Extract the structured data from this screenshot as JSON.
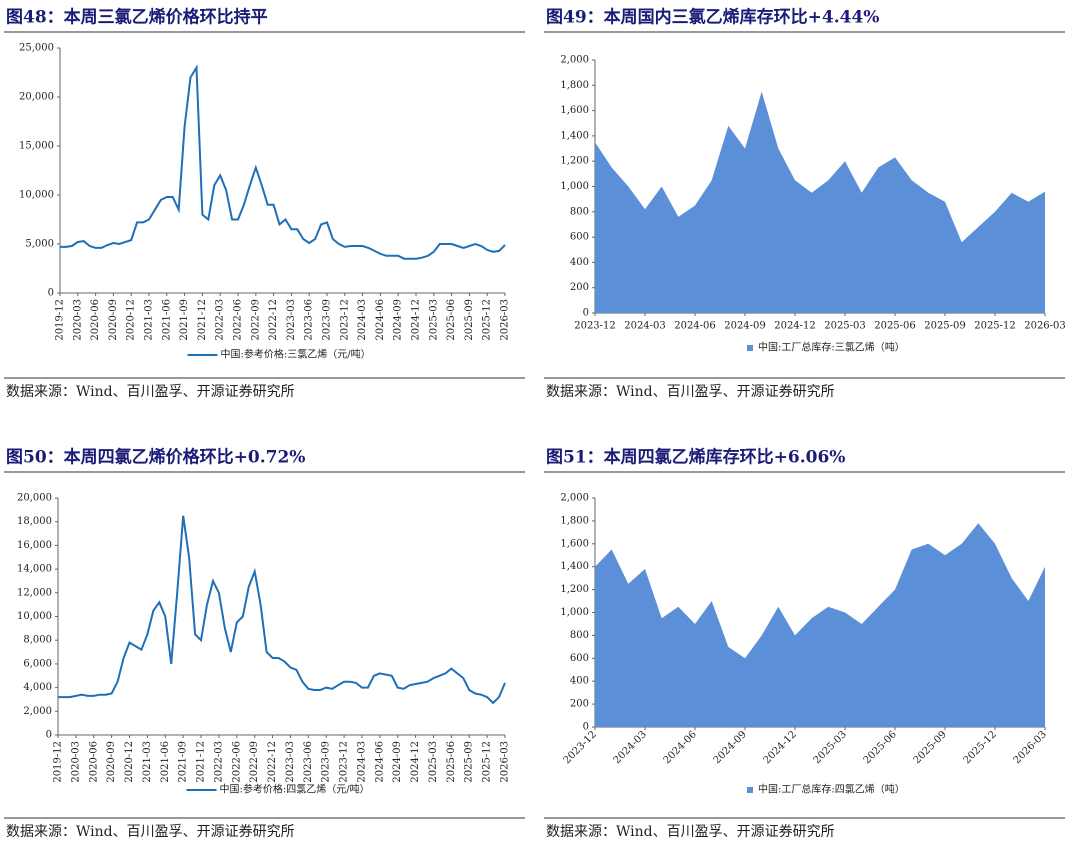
{
  "chart_data": [
    {
      "type": "line",
      "title": "图48：本周三氯乙烯价格环比持平",
      "source": "数据来源：Wind、百川盈孚、开源证券研究所",
      "categories": [
        "2019-12",
        null,
        null,
        "2020-03",
        null,
        null,
        "2020-06",
        null,
        null,
        "2020-09",
        null,
        null,
        "2020-12",
        null,
        null,
        "2021-03",
        null,
        null,
        "2021-06",
        null,
        null,
        "2021-09",
        null,
        null,
        "2021-12",
        null,
        null,
        "2022-03",
        null,
        null,
        "2022-06",
        null,
        null,
        "2022-09",
        null,
        null,
        "2022-12",
        null,
        null,
        "2023-03",
        null,
        null,
        "2023-06",
        null,
        null,
        "2023-09",
        null,
        null,
        "2023-12",
        null,
        null,
        "2024-03",
        null,
        null,
        "2024-06",
        null,
        null,
        "2024-09",
        null,
        null,
        "2024-12",
        null,
        null,
        "2025-03",
        null,
        null,
        "2025-06",
        null,
        null,
        "2025-09",
        null,
        null,
        "2025-12",
        null,
        null,
        "2026-03"
      ],
      "series": [
        {
          "name": "中国:参考价格:三氯乙烯（元/吨）",
          "color": "#1f6fb8",
          "values": [
            4700,
            4700,
            4800,
            5200,
            5300,
            4800,
            4600,
            4600,
            4900,
            5100,
            5000,
            5200,
            5400,
            7200,
            7200,
            7500,
            8500,
            9500,
            9800,
            9800,
            8500,
            17000,
            22000,
            23000,
            8000,
            7500,
            11000,
            12000,
            10500,
            7500,
            7500,
            9000,
            11000,
            12800,
            11000,
            9000,
            9000,
            7000,
            7500,
            6500,
            6500,
            5500,
            5100,
            5500,
            7000,
            7200,
            5500,
            5000,
            4700,
            4800,
            4800,
            4800,
            4600,
            4300,
            4000,
            3800,
            3800,
            3800,
            3500,
            3500,
            3500,
            3600,
            3800,
            4200,
            5000,
            5000,
            5000,
            4800,
            4600,
            4800,
            5000,
            4800,
            4400,
            4200,
            4300,
            4900
          ]
        }
      ],
      "ylim": [
        0,
        25000
      ],
      "yticks": [
        0,
        {
          "value": 5000,
          "label": "5,000"
        },
        {
          "value": 10000,
          "label": "10,000"
        },
        {
          "value": 15000,
          "label": "15,000"
        },
        {
          "value": 20000,
          "label": "20,000"
        },
        {
          "value": 25000,
          "label": "25,000"
        }
      ],
      "grid": false
    },
    {
      "type": "area",
      "title": "图49：本周国内三氯乙烯库存环比+4.44%",
      "source": "数据来源：Wind、百川盈孚、开源证券研究所",
      "categories": [
        "2023-12",
        null,
        null,
        "2024-03",
        null,
        null,
        "2024-06",
        null,
        null,
        "2024-09",
        null,
        null,
        "2024-12",
        null,
        null,
        "2025-03",
        null,
        null,
        "2025-06",
        null,
        null,
        "2025-09",
        null,
        null,
        "2025-12",
        null,
        null,
        "2026-03"
      ],
      "series": [
        {
          "name": "中国:工厂总库存:三氯乙烯（吨）",
          "color": "#5b8fd8",
          "values": [
            1350,
            1150,
            1000,
            820,
            1000,
            760,
            850,
            1050,
            1480,
            1300,
            1750,
            1300,
            1050,
            950,
            1050,
            1200,
            950,
            1150,
            1230,
            1050,
            950,
            880,
            560,
            680,
            800,
            950,
            880,
            960
          ]
        }
      ],
      "ylim": [
        0,
        2000
      ],
      "yticks": [
        0,
        200,
        400,
        600,
        800,
        {
          "value": 1000,
          "label": "1,000"
        },
        {
          "value": 1200,
          "label": "1,200"
        },
        {
          "value": 1400,
          "label": "1,400"
        },
        {
          "value": 1600,
          "label": "1,600"
        },
        {
          "value": 1800,
          "label": "1,800"
        },
        {
          "value": 2000,
          "label": "2,000"
        }
      ],
      "grid": false
    },
    {
      "type": "line",
      "title": "图50：本周四氯乙烯价格环比+0.72%",
      "source": "数据来源：Wind、百川盈孚、开源证券研究所",
      "categories": [
        "2019-12",
        null,
        null,
        "2020-03",
        null,
        null,
        "2020-06",
        null,
        null,
        "2020-09",
        null,
        null,
        "2020-12",
        null,
        null,
        "2021-03",
        null,
        null,
        "2021-06",
        null,
        null,
        "2021-09",
        null,
        null,
        "2021-12",
        null,
        null,
        "2022-03",
        null,
        null,
        "2022-06",
        null,
        null,
        "2022-09",
        null,
        null,
        "2022-12",
        null,
        null,
        "2023-03",
        null,
        null,
        "2023-06",
        null,
        null,
        "2023-09",
        null,
        null,
        "2023-12",
        null,
        null,
        "2024-03",
        null,
        null,
        "2024-06",
        null,
        null,
        "2024-09",
        null,
        null,
        "2024-12",
        null,
        null,
        "2025-03",
        null,
        null,
        "2025-06",
        null,
        null,
        "2025-09",
        null,
        null,
        "2025-12",
        null,
        null,
        "2026-03"
      ],
      "series": [
        {
          "name": "中国:参考价格:四氯乙烯（元/吨）",
          "color": "#1f6fb8",
          "values": [
            3200,
            3200,
            3200,
            3300,
            3400,
            3300,
            3300,
            3400,
            3400,
            3500,
            4500,
            6500,
            7800,
            7500,
            7200,
            8500,
            10500,
            11200,
            10000,
            6000,
            12000,
            18500,
            15000,
            8500,
            8000,
            11000,
            13000,
            12000,
            9000,
            7000,
            9500,
            10000,
            12500,
            13800,
            11000,
            7000,
            6500,
            6500,
            6200,
            5700,
            5500,
            4500,
            3900,
            3800,
            3800,
            4000,
            3900,
            4200,
            4500,
            4500,
            4400,
            4000,
            4000,
            5000,
            5200,
            5100,
            5000,
            4000,
            3900,
            4200,
            4300,
            4400,
            4500,
            4800,
            5000,
            5200,
            5600,
            5200,
            4800,
            3800,
            3500,
            3400,
            3200,
            2700,
            3200,
            4400
          ]
        }
      ],
      "ylim": [
        0,
        20000
      ],
      "yticks": [
        0,
        {
          "value": 2000,
          "label": "2,000"
        },
        {
          "value": 4000,
          "label": "4,000"
        },
        {
          "value": 6000,
          "label": "6,000"
        },
        {
          "value": 8000,
          "label": "8,000"
        },
        {
          "value": 10000,
          "label": "10,000"
        },
        {
          "value": 12000,
          "label": "12,000"
        },
        {
          "value": 14000,
          "label": "14,000"
        },
        {
          "value": 16000,
          "label": "16,000"
        },
        {
          "value": 18000,
          "label": "18,000"
        },
        {
          "value": 20000,
          "label": "20,000"
        }
      ],
      "grid": false
    },
    {
      "type": "area",
      "title": "图51：本周四氯乙烯库存环比+6.06%",
      "source": "数据来源：Wind、百川盈孚、开源证券研究所",
      "categories": [
        "2023-12",
        null,
        null,
        "2024-03",
        null,
        null,
        "2024-06",
        null,
        null,
        "2024-09",
        null,
        null,
        "2024-12",
        null,
        null,
        "2025-03",
        null,
        null,
        "2025-06",
        null,
        null,
        "2025-09",
        null,
        null,
        "2025-12",
        null,
        null,
        "2026-03"
      ],
      "series": [
        {
          "name": "中国:工厂总库存:四氯乙烯（吨）",
          "color": "#5b8fd8",
          "values": [
            1400,
            1550,
            1250,
            1380,
            950,
            1050,
            900,
            1100,
            700,
            600,
            800,
            1050,
            800,
            950,
            1050,
            1000,
            900,
            1050,
            1200,
            1550,
            1600,
            1500,
            1600,
            1780,
            1600,
            1300,
            1100,
            1400
          ]
        }
      ],
      "ylim": [
        0,
        2000
      ],
      "yticks": [
        0,
        200,
        400,
        600,
        800,
        {
          "value": 1000,
          "label": "1,000"
        },
        {
          "value": 1200,
          "label": "1,200"
        },
        {
          "value": 1400,
          "label": "1,400"
        },
        {
          "value": 1600,
          "label": "1,600"
        },
        {
          "value": 1800,
          "label": "1,800"
        },
        {
          "value": 2000,
          "label": "2,000"
        }
      ],
      "grid": false
    }
  ]
}
